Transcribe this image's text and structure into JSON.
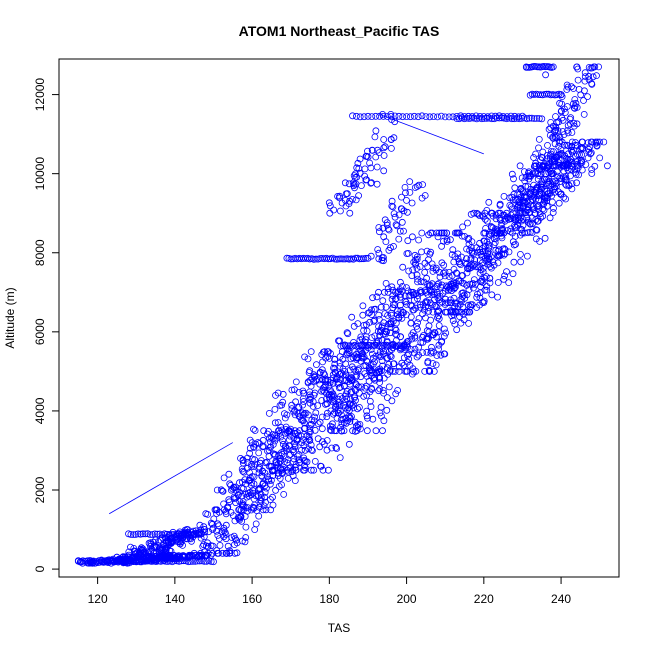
{
  "chart_data": {
    "type": "scatter",
    "title": "ATOM1 Northeast_Pacific TAS",
    "xlabel": "TAS",
    "ylabel": "Altitude (m)",
    "xlim": [
      110,
      255
    ],
    "ylim": [
      -200,
      12900
    ],
    "x_ticks": [
      120,
      140,
      160,
      180,
      200,
      220,
      240
    ],
    "y_ticks": [
      0,
      2000,
      4000,
      6000,
      8000,
      10000,
      12000
    ],
    "grid": false,
    "legend": "none",
    "point_color": "#0000ff",
    "marker": "open-circle",
    "series": [
      {
        "x": [
          115,
          118,
          121,
          124,
          127,
          130,
          133,
          136,
          139,
          142,
          145,
          148,
          151,
          154,
          157,
          160,
          163,
          166,
          169,
          172,
          175,
          178,
          181,
          184,
          187,
          190,
          193,
          196,
          199,
          202,
          205,
          208,
          211,
          214,
          217,
          220,
          223,
          226,
          229,
          232,
          235,
          238,
          241,
          244,
          247,
          250,
          252,
          246,
          240,
          236,
          231
        ],
        "y": [
          200,
          220,
          230,
          250,
          270,
          300,
          330,
          380,
          450,
          600,
          900,
          1400,
          2000,
          2400,
          2800,
          3200,
          3500,
          3700,
          3900,
          4100,
          4300,
          4500,
          4700,
          5000,
          5300,
          5600,
          5900,
          6200,
          6500,
          6800,
          7000,
          7200,
          7400,
          7700,
          8000,
          8300,
          8600,
          8900,
          9200,
          9500,
          9800,
          10000,
          10200,
          10300,
          10400,
          10400,
          10200,
          11500,
          12000,
          12500,
          12700
        ],
        "bands": [
          {
            "x": [
              115,
              150
            ],
            "y": [
              150,
              350
            ],
            "count": 220
          },
          {
            "x": [
              125,
              150
            ],
            "y": [
              300,
              1000
            ],
            "count": 160
          },
          {
            "x": [
              145,
              175
            ],
            "y": [
              400,
              3500
            ],
            "count": 220
          },
          {
            "x": [
              150,
              190
            ],
            "y": [
              1500,
              5500
            ],
            "count": 260
          },
          {
            "x": [
              165,
              205
            ],
            "y": [
              2500,
              7000
            ],
            "count": 260
          },
          {
            "x": [
              180,
              215
            ],
            "y": [
              3500,
              8500
            ],
            "count": 260
          },
          {
            "x": [
              195,
              230
            ],
            "y": [
              5000,
              9000
            ],
            "count": 240
          },
          {
            "x": [
              205,
              245
            ],
            "y": [
              6500,
              10200
            ],
            "count": 240
          },
          {
            "x": [
              220,
              252
            ],
            "y": [
              8500,
              10800
            ],
            "count": 260
          },
          {
            "x": [
              232,
              250
            ],
            "y": [
              10000,
              12700
            ],
            "count": 120
          },
          {
            "x": [
              180,
              200
            ],
            "y": [
              9000,
              11500
            ],
            "count": 70
          },
          {
            "x": [
              190,
              205
            ],
            "y": [
              7800,
              9800
            ],
            "count": 50
          }
        ],
        "lines": [
          {
            "x": [
              169,
              190
            ],
            "y": [
              7850,
              7850
            ],
            "count": 40
          },
          {
            "x": [
              186,
              230
            ],
            "y": [
              11450,
              11450
            ],
            "count": 45
          },
          {
            "x": [
              213,
              235
            ],
            "y": [
              11400,
              11400
            ],
            "count": 35
          },
          {
            "x": [
              231,
              238
            ],
            "y": [
              12700,
              12700
            ],
            "count": 18
          },
          {
            "x": [
              232,
              240
            ],
            "y": [
              12000,
              12000
            ],
            "count": 16
          },
          {
            "x": [
              183,
              200
            ],
            "y": [
              5650,
              5650
            ],
            "count": 30
          },
          {
            "x": [
              128,
              146
            ],
            "y": [
              880,
              880
            ],
            "count": 30
          },
          {
            "x": [
              115,
              150
            ],
            "y": [
              200,
              200
            ],
            "count": 60
          }
        ],
        "connector_lines": [
          {
            "x": [
              123,
              155
            ],
            "y": [
              1400,
              3200
            ]
          },
          {
            "x": [
              193,
              220
            ],
            "y": [
              11500,
              10500
            ]
          }
        ]
      }
    ]
  }
}
